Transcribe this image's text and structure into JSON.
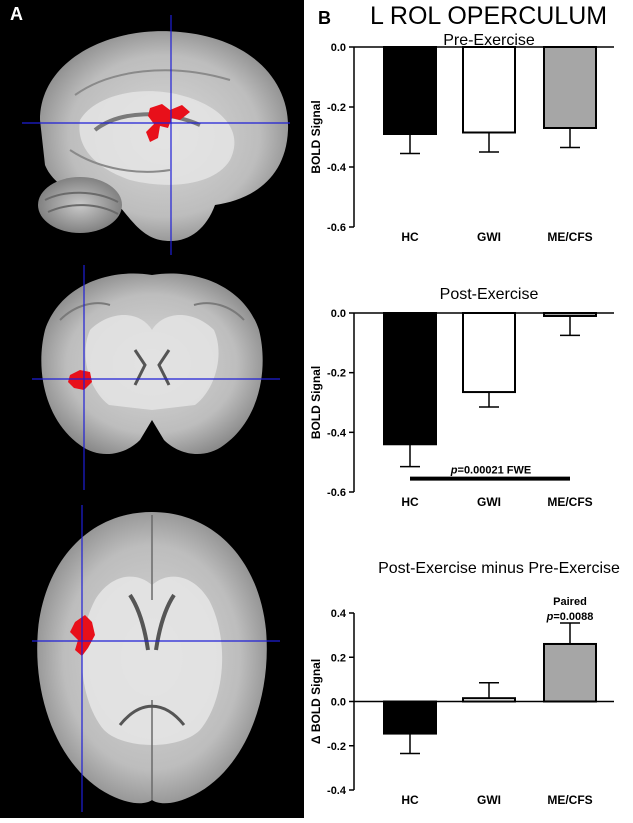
{
  "panel_a_label": "A",
  "panel_b_label": "B",
  "figure_title": "L ROL OPERCULUM",
  "colors": {
    "hc": "#000000",
    "gwi": "#ffffff",
    "mecfs": "#a6a6a6",
    "crosshair": "#1f1fd6",
    "activation": "#e8101a"
  },
  "chart_data": [
    {
      "type": "bar",
      "title": "Pre-Exercise",
      "ylabel": "BOLD Signal",
      "ylim": [
        -0.6,
        0.0
      ],
      "yticks": [
        "0.0",
        "-0.2",
        "-0.4",
        "-0.6"
      ],
      "categories": [
        "HC",
        "GWI",
        "ME/CFS"
      ],
      "values": [
        -0.29,
        -0.285,
        -0.27
      ],
      "errors": [
        0.065,
        0.065,
        0.065
      ],
      "annotations": []
    },
    {
      "type": "bar",
      "title": "Post-Exercise",
      "ylabel": "BOLD Signal",
      "ylim": [
        -0.6,
        0.0
      ],
      "yticks": [
        "0.0",
        "-0.2",
        "-0.4",
        "-0.6"
      ],
      "categories": [
        "HC",
        "GWI",
        "ME/CFS"
      ],
      "values": [
        -0.44,
        -0.265,
        -0.01
      ],
      "errors": [
        0.075,
        0.05,
        0.065
      ],
      "annotations": [
        {
          "text": "p=0.00021 FWE",
          "p_prefix": "p",
          "p_rest": "=0.00021 FWE"
        }
      ]
    },
    {
      "type": "bar",
      "title": "Post-Exercise minus Pre-Exercise",
      "ylabel": "Δ BOLD Signal",
      "ylim": [
        -0.4,
        0.4
      ],
      "yticks": [
        "0.4",
        "0.2",
        "0.0",
        "-0.2",
        "-0.4"
      ],
      "categories": [
        "HC",
        "GWI",
        "ME/CFS"
      ],
      "values": [
        -0.145,
        0.015,
        0.26
      ],
      "errors": [
        0.09,
        0.07,
        0.095
      ],
      "annotations": [
        {
          "line1": "Paired",
          "p_prefix": "p",
          "p_rest": "=0.0088"
        }
      ]
    }
  ]
}
